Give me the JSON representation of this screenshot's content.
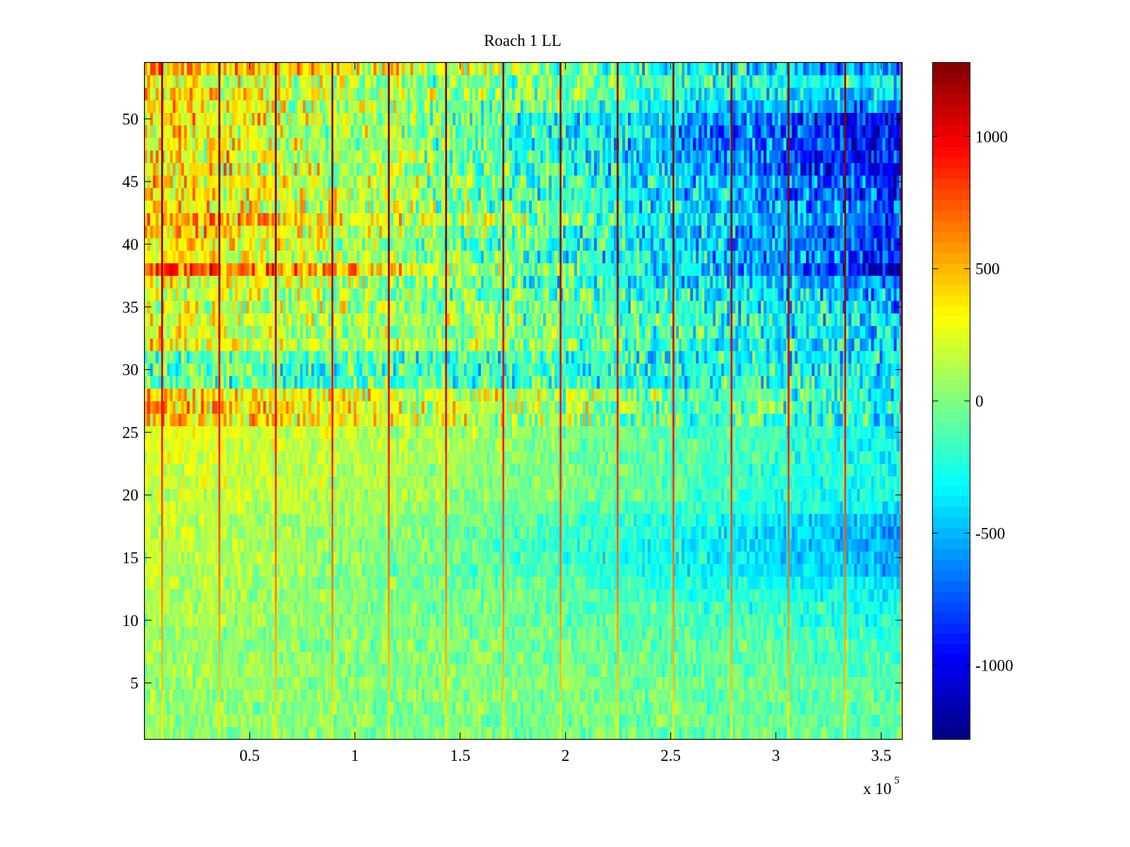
{
  "chart_data": {
    "type": "heatmap",
    "title": "Roach 1 LL",
    "xlabel": "",
    "ylabel": "",
    "x_multiplier_label": "x 10",
    "x_multiplier_exponent": "5",
    "xlim": [
      0,
      360000
    ],
    "ylim": [
      0.5,
      54.5
    ],
    "rows": 54,
    "x_ticks": [
      50000,
      100000,
      150000,
      200000,
      250000,
      300000,
      350000
    ],
    "x_tick_labels": [
      "0.5",
      "1",
      "1.5",
      "2",
      "2.5",
      "3",
      "3.5"
    ],
    "y_ticks": [
      5,
      10,
      15,
      20,
      25,
      30,
      35,
      40,
      45,
      50
    ],
    "y_tick_labels": [
      "5",
      "10",
      "15",
      "20",
      "25",
      "30",
      "35",
      "40",
      "45",
      "50"
    ],
    "colormap": "jet",
    "clim": [
      -1280,
      1280
    ],
    "colorbar_ticks": [
      1000,
      500,
      0,
      -500,
      -1000
    ],
    "colorbar_tick_labels": [
      "1000",
      "500",
      "0",
      "-500",
      "-1000"
    ],
    "row_mean_at_x_start": [
      20,
      30,
      40,
      50,
      50,
      60,
      60,
      70,
      80,
      90,
      120,
      130,
      140,
      150,
      150,
      160,
      170,
      170,
      180,
      200,
      220,
      230,
      240,
      250,
      260,
      450,
      450,
      450,
      -100,
      -100,
      -50,
      300,
      250,
      250,
      250,
      250,
      300,
      800,
      400,
      350,
      450,
      600,
      400,
      400,
      400,
      400,
      400,
      350,
      350,
      400,
      350,
      400,
      250,
      550
    ],
    "row_mean_at_x_end": [
      -80,
      -80,
      -90,
      -100,
      -100,
      -120,
      -150,
      -150,
      -200,
      -250,
      -300,
      -350,
      -400,
      -550,
      -550,
      -550,
      -550,
      -500,
      -350,
      -300,
      -300,
      -300,
      -300,
      -300,
      -300,
      -350,
      -300,
      -300,
      -300,
      -300,
      -350,
      -400,
      -400,
      -450,
      -500,
      -550,
      -700,
      -1100,
      -850,
      -850,
      -850,
      -800,
      -800,
      -900,
      -850,
      -1000,
      -1000,
      -1000,
      -1000,
      -1000,
      -700,
      -500,
      -400,
      -700
    ],
    "noise_amplitude_low_rows": 150,
    "noise_amplitude_high_rows": 320,
    "spike_x": [
      8400,
      35600,
      62400,
      89300,
      116100,
      143300,
      170500,
      197700,
      224800,
      251300,
      278900,
      306000,
      332900,
      359700
    ],
    "spike_value_top": 1280,
    "spike_value_bottom": 350
  }
}
